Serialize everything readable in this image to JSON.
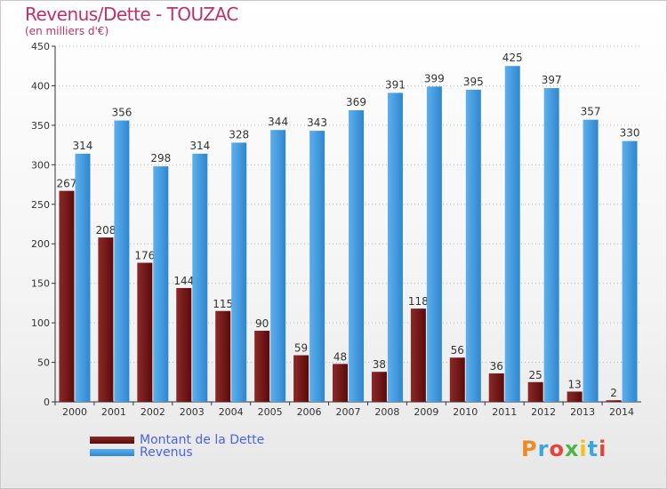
{
  "title": "Revenus/Dette - TOUZAC",
  "subtitle": "(en milliers d'€)",
  "logo_text": "Proxiti",
  "colors": {
    "dette_dark": "#5c0a0a",
    "dette_light": "#8a2a2a",
    "revenus_dark": "#2f86cf",
    "revenus_light": "#5db0ec",
    "title": "#c0306a",
    "legend_text": "#4b63e6",
    "axis": "#333333",
    "grid": "#bbbbbb"
  },
  "legend": {
    "position": "bottom-left",
    "items": [
      {
        "label": "Montant de la Dette",
        "color": "#6a1515"
      },
      {
        "label": "Revenus",
        "color": "#3d9be2"
      }
    ]
  },
  "chart_data": {
    "type": "bar",
    "categories": [
      "2000",
      "2001",
      "2002",
      "2003",
      "2004",
      "2005",
      "2006",
      "2007",
      "2008",
      "2009",
      "2010",
      "2011",
      "2012",
      "2013",
      "2014"
    ],
    "series": [
      {
        "name": "Montant de la Dette",
        "values": [
          267,
          208,
          176,
          144,
          115,
          90,
          59,
          48,
          38,
          118,
          56,
          36,
          25,
          13,
          2
        ]
      },
      {
        "name": "Revenus",
        "values": [
          314,
          356,
          298,
          314,
          328,
          344,
          343,
          369,
          391,
          399,
          395,
          425,
          397,
          357,
          330
        ]
      }
    ],
    "ylim": [
      0,
      450
    ],
    "yticks": [
      0,
      50,
      100,
      150,
      200,
      250,
      300,
      350,
      400,
      450
    ],
    "grid": true
  }
}
